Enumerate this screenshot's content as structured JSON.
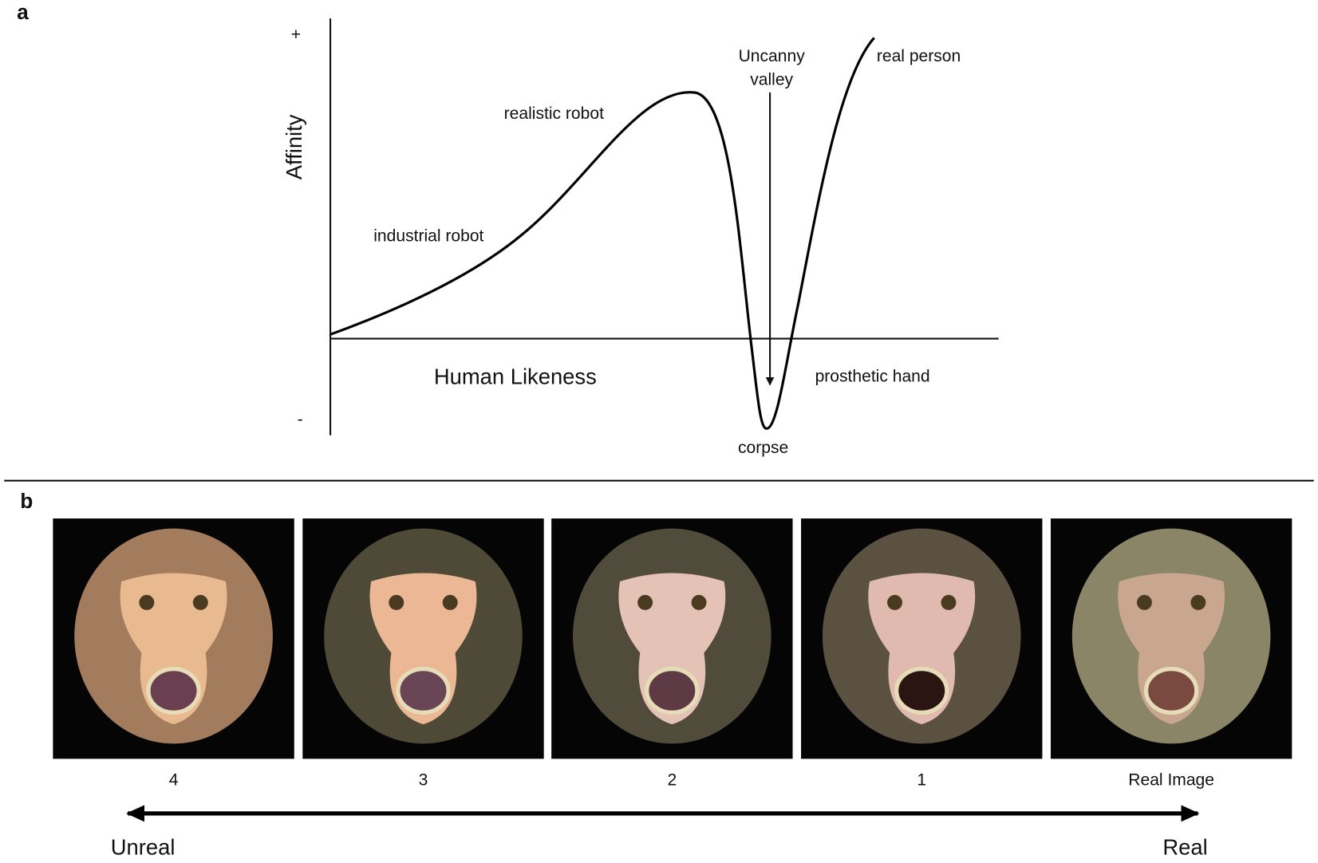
{
  "panel_a": {
    "label": "a",
    "y_axis": {
      "title": "Affinity",
      "top": "+",
      "bottom": "-"
    },
    "x_axis_title": "Human Likeness",
    "annotations": {
      "industrial_robot": "industrial robot",
      "realistic_robot": "realistic robot",
      "uncanny_valley": [
        "Uncanny",
        "valley"
      ],
      "real_person": "real person",
      "prosthetic_hand": "prosthetic hand",
      "corpse": "corpse"
    }
  },
  "panel_b": {
    "label": "b",
    "captions": [
      "4",
      "3",
      "2",
      "1",
      "Real Image"
    ],
    "scale": {
      "left": "Unreal",
      "right": "Real"
    }
  }
}
